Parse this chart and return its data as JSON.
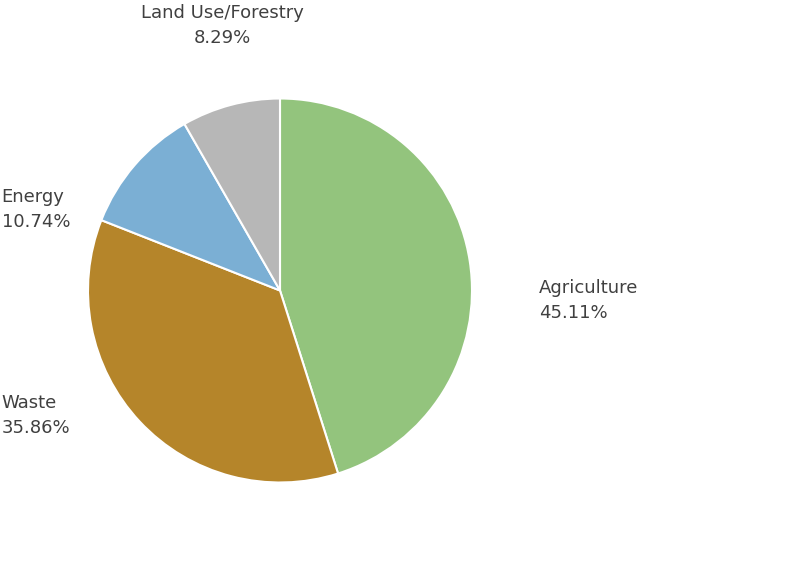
{
  "labels": [
    "Agriculture",
    "Waste",
    "Energy",
    "Land Use/Forestry"
  ],
  "values": [
    45.11,
    35.86,
    10.74,
    8.29
  ],
  "colors": [
    "#93c47d",
    "#b5852a",
    "#7bafd4",
    "#b7b7b7"
  ],
  "startangle": 90,
  "background_color": "#ffffff",
  "text_color": "#404040",
  "label_fontsize": 13,
  "figsize": [
    8.0,
    5.81
  ],
  "dpi": 100
}
